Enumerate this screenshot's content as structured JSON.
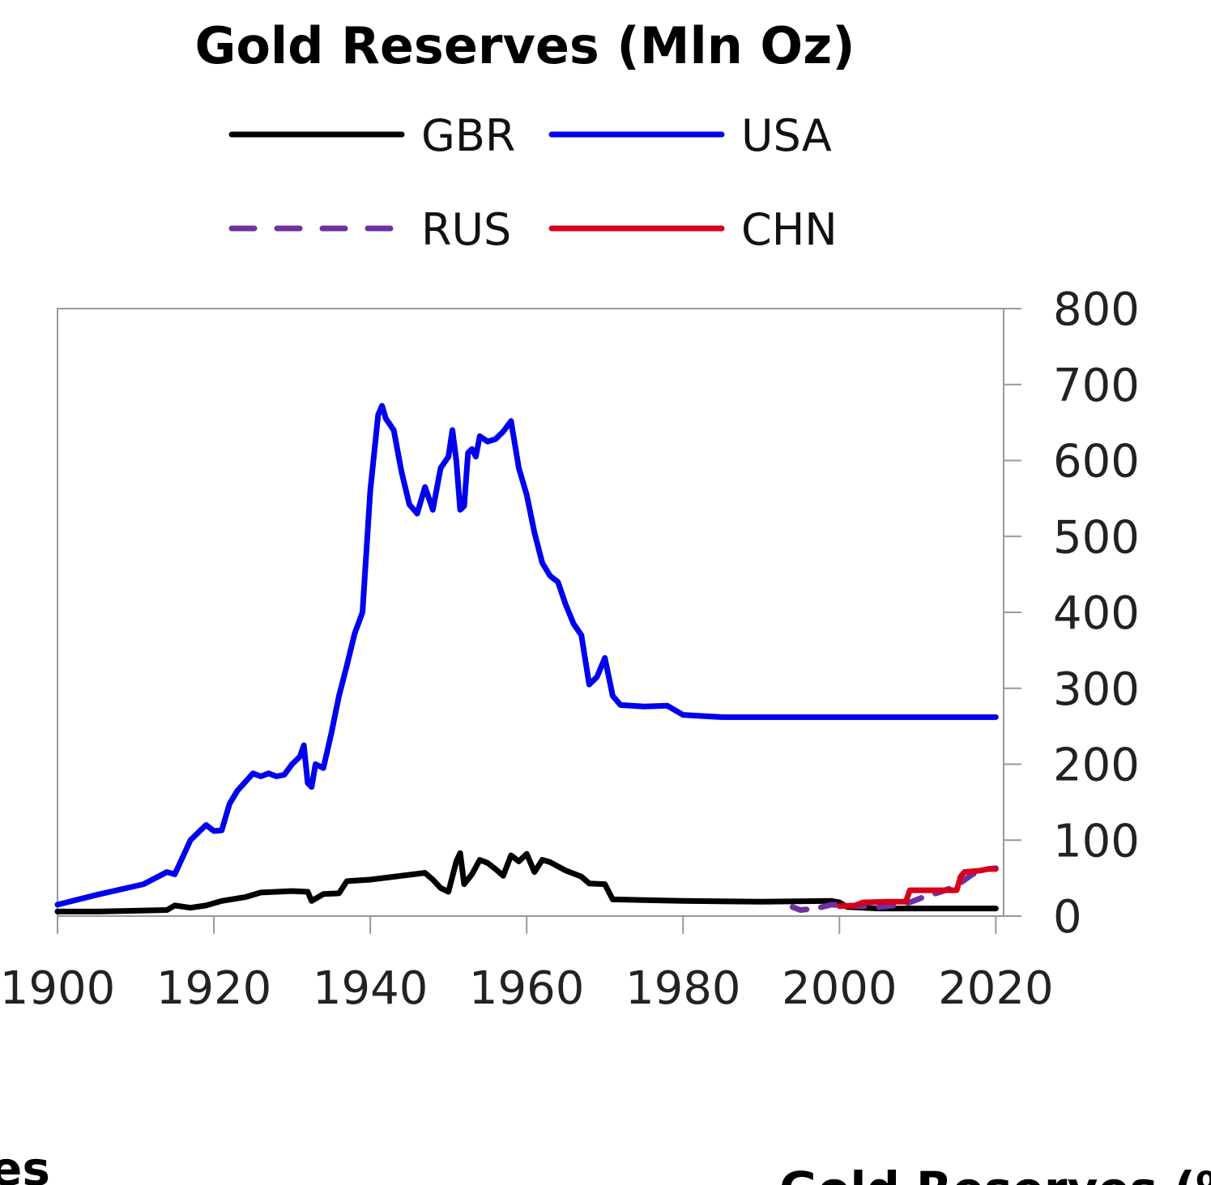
{
  "chart_data": {
    "type": "line",
    "title": "Gold Reserves (Mln Oz)",
    "xlabel": "",
    "ylabel": "",
    "xlim": [
      1900,
      2021
    ],
    "ylim": [
      0,
      800
    ],
    "x_ticks": [
      1900,
      1920,
      1940,
      1960,
      1980,
      2000,
      2020
    ],
    "y_ticks": [
      0,
      100,
      200,
      300,
      400,
      500,
      600,
      700,
      800
    ],
    "y_axis_side": "right",
    "grid": false,
    "legend_position": "top",
    "series": [
      {
        "name": "GBR",
        "color": "#000000",
        "dash": "solid",
        "points": [
          [
            1900,
            6
          ],
          [
            1905,
            6
          ],
          [
            1910,
            7
          ],
          [
            1914,
            8
          ],
          [
            1915,
            14
          ],
          [
            1917,
            11
          ],
          [
            1919,
            14
          ],
          [
            1921,
            20
          ],
          [
            1924,
            25
          ],
          [
            1926,
            31
          ],
          [
            1930,
            33
          ],
          [
            1932,
            32
          ],
          [
            1932.5,
            20
          ],
          [
            1934,
            29
          ],
          [
            1936,
            30
          ],
          [
            1937,
            46
          ],
          [
            1940,
            48
          ],
          [
            1947,
            57
          ],
          [
            1948,
            48
          ],
          [
            1949,
            37
          ],
          [
            1950,
            32
          ],
          [
            1951,
            72
          ],
          [
            1951.5,
            83
          ],
          [
            1952,
            42
          ],
          [
            1953,
            55
          ],
          [
            1954,
            74
          ],
          [
            1955,
            70
          ],
          [
            1956,
            62
          ],
          [
            1957,
            53
          ],
          [
            1958,
            80
          ],
          [
            1959,
            72
          ],
          [
            1960,
            82
          ],
          [
            1961,
            58
          ],
          [
            1962,
            74
          ],
          [
            1963,
            71
          ],
          [
            1965,
            60
          ],
          [
            1967,
            52
          ],
          [
            1968,
            43
          ],
          [
            1970,
            42
          ],
          [
            1971,
            22
          ],
          [
            1975,
            21
          ],
          [
            1980,
            20
          ],
          [
            1990,
            19
          ],
          [
            1999,
            20
          ],
          [
            2000,
            18
          ],
          [
            2001,
            12
          ],
          [
            2005,
            10
          ],
          [
            2020,
            10
          ]
        ]
      },
      {
        "name": "USA",
        "color": "#0000ee",
        "dash": "solid",
        "points": [
          [
            1900,
            15
          ],
          [
            1905,
            28
          ],
          [
            1911,
            42
          ],
          [
            1914,
            58
          ],
          [
            1915,
            55
          ],
          [
            1917,
            100
          ],
          [
            1919,
            120
          ],
          [
            1920,
            112
          ],
          [
            1921,
            113
          ],
          [
            1922,
            148
          ],
          [
            1923,
            165
          ],
          [
            1925,
            188
          ],
          [
            1926,
            184
          ],
          [
            1927,
            188
          ],
          [
            1928,
            184
          ],
          [
            1929,
            186
          ],
          [
            1930,
            200
          ],
          [
            1931,
            210
          ],
          [
            1931.5,
            225
          ],
          [
            1932,
            175
          ],
          [
            1932.5,
            170
          ],
          [
            1933,
            200
          ],
          [
            1934,
            195
          ],
          [
            1935,
            240
          ],
          [
            1936,
            290
          ],
          [
            1937,
            330
          ],
          [
            1938,
            372
          ],
          [
            1939,
            400
          ],
          [
            1940,
            560
          ],
          [
            1941,
            660
          ],
          [
            1941.5,
            672
          ],
          [
            1942,
            655
          ],
          [
            1943,
            640
          ],
          [
            1944,
            585
          ],
          [
            1945,
            542
          ],
          [
            1946,
            530
          ],
          [
            1947,
            565
          ],
          [
            1948,
            535
          ],
          [
            1949,
            590
          ],
          [
            1950,
            605
          ],
          [
            1950.5,
            640
          ],
          [
            1951,
            600
          ],
          [
            1951.5,
            535
          ],
          [
            1952,
            540
          ],
          [
            1952.5,
            610
          ],
          [
            1953,
            615
          ],
          [
            1953.5,
            605
          ],
          [
            1954,
            632
          ],
          [
            1955,
            625
          ],
          [
            1956,
            628
          ],
          [
            1957,
            638
          ],
          [
            1958,
            652
          ],
          [
            1959,
            590
          ],
          [
            1960,
            555
          ],
          [
            1961,
            505
          ],
          [
            1962,
            465
          ],
          [
            1963,
            448
          ],
          [
            1964,
            440
          ],
          [
            1965,
            410
          ],
          [
            1966,
            385
          ],
          [
            1967,
            370
          ],
          [
            1968,
            305
          ],
          [
            1969,
            315
          ],
          [
            1970,
            340
          ],
          [
            1971,
            290
          ],
          [
            1972,
            278
          ],
          [
            1975,
            276
          ],
          [
            1978,
            277
          ],
          [
            1980,
            265
          ],
          [
            1985,
            262
          ],
          [
            2000,
            262
          ],
          [
            2020,
            262
          ]
        ]
      },
      {
        "name": "RUS",
        "color": "#7030a0",
        "dash": "dashed",
        "points": [
          [
            1994,
            12
          ],
          [
            1995,
            8
          ],
          [
            1997,
            10
          ],
          [
            1999,
            15
          ],
          [
            2000,
            14
          ],
          [
            2003,
            13
          ],
          [
            2005,
            12
          ],
          [
            2007,
            14
          ],
          [
            2009,
            18
          ],
          [
            2011,
            26
          ],
          [
            2013,
            32
          ],
          [
            2015,
            40
          ],
          [
            2017,
            55
          ],
          [
            2019,
            62
          ],
          [
            2020,
            63
          ]
        ]
      },
      {
        "name": "CHN",
        "color": "#d6001c",
        "dash": "solid",
        "points": [
          [
            2000,
            13
          ],
          [
            2002,
            14
          ],
          [
            2003,
            18
          ],
          [
            2006,
            19
          ],
          [
            2008.5,
            19
          ],
          [
            2009,
            34
          ],
          [
            2015,
            34
          ],
          [
            2015.5,
            52
          ],
          [
            2016,
            58
          ],
          [
            2018,
            60
          ],
          [
            2019,
            62
          ],
          [
            2020,
            62
          ]
        ]
      }
    ]
  },
  "partial_labels": {
    "left": "es",
    "right": "Gold Reserves (%"
  }
}
